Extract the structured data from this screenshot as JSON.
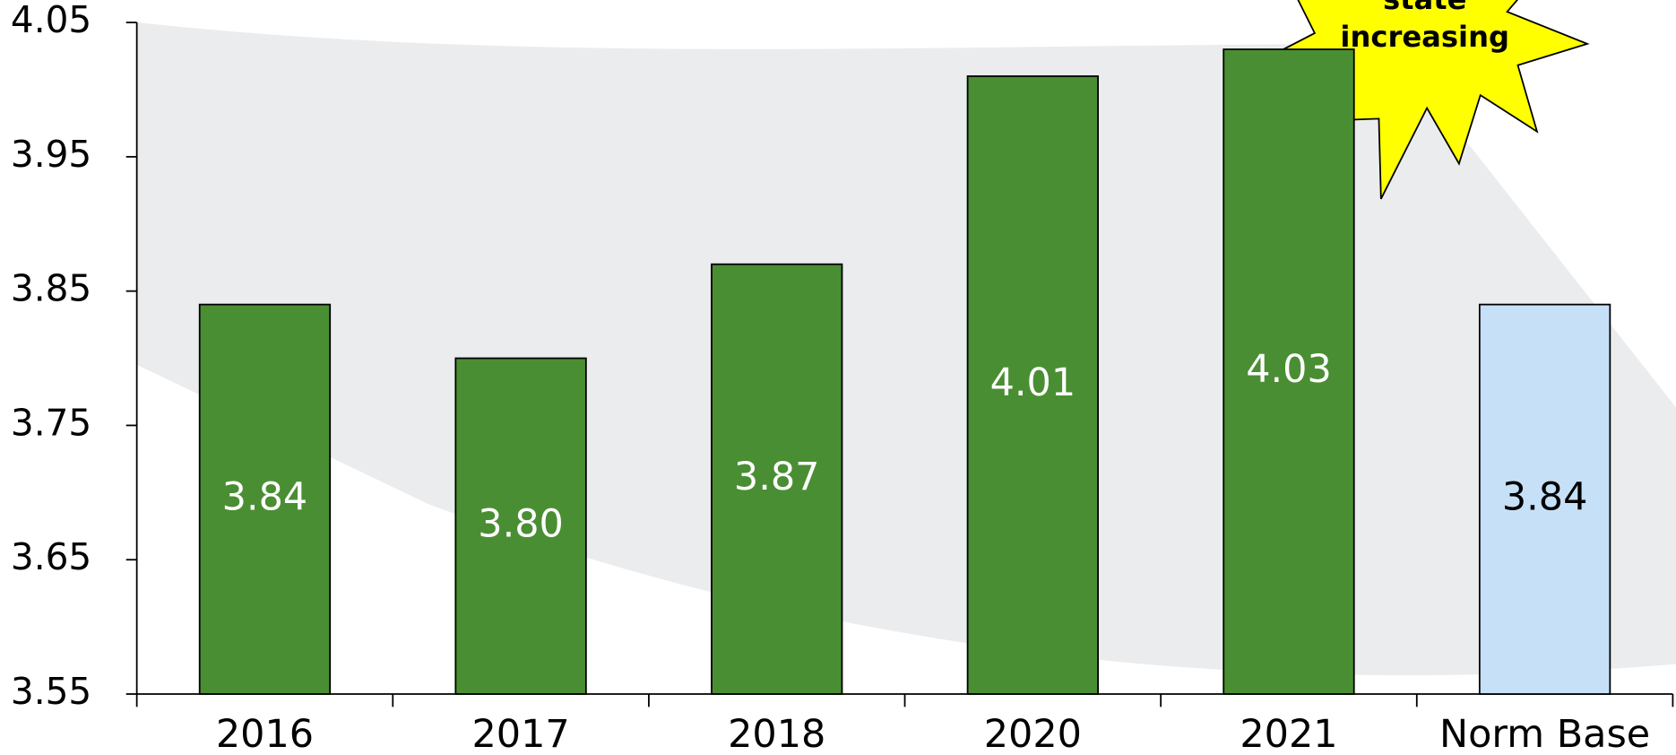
{
  "chart_data": {
    "type": "bar",
    "categories": [
      "2016",
      "2017",
      "2018",
      "2020",
      "2021",
      "Norm Base"
    ],
    "values": [
      3.84,
      3.8,
      3.87,
      4.01,
      4.03,
      3.84
    ],
    "value_labels": [
      "3.84",
      "3.80",
      "3.87",
      "4.01",
      "4.03",
      "3.84"
    ],
    "colors": [
      "#4a8e33",
      "#4a8e33",
      "#4a8e33",
      "#4a8e33",
      "#4a8e33",
      "#c6e0f8"
    ],
    "value_label_colors": [
      "#ffffff",
      "#ffffff",
      "#ffffff",
      "#ffffff",
      "#ffffff",
      "#000000"
    ],
    "ylim": [
      3.55,
      4.05
    ],
    "yticks": [
      3.55,
      3.65,
      3.75,
      3.85,
      3.95,
      4.05
    ],
    "grid": false,
    "annotation": [
      "state",
      "increasing"
    ]
  }
}
